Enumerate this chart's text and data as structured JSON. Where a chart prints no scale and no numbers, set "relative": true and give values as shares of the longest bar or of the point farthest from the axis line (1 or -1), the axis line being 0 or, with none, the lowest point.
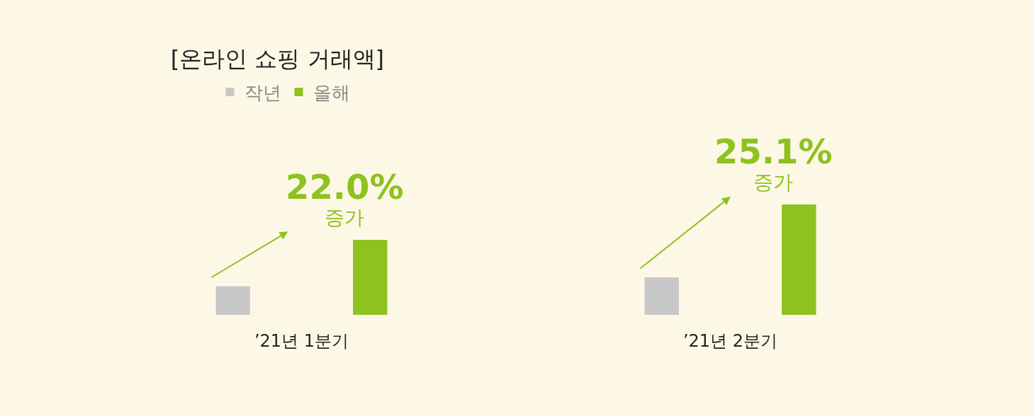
{
  "chart_data": {
    "type": "bar",
    "title": "[온라인 쇼핑 거래액]",
    "categories": [
      "’21년 1분기",
      "’21년 2분기"
    ],
    "relative": true,
    "series": [
      {
        "name": "작년",
        "color": "#c8c8c8",
        "values": [
          0.26,
          0.34
        ]
      },
      {
        "name": "올해",
        "color": "#8dc21f",
        "values": [
          0.68,
          1.0
        ]
      }
    ],
    "annotations": [
      "22.0%\n증가",
      "25.1%\n증가"
    ],
    "legend": "top left",
    "grid": false
  }
}
